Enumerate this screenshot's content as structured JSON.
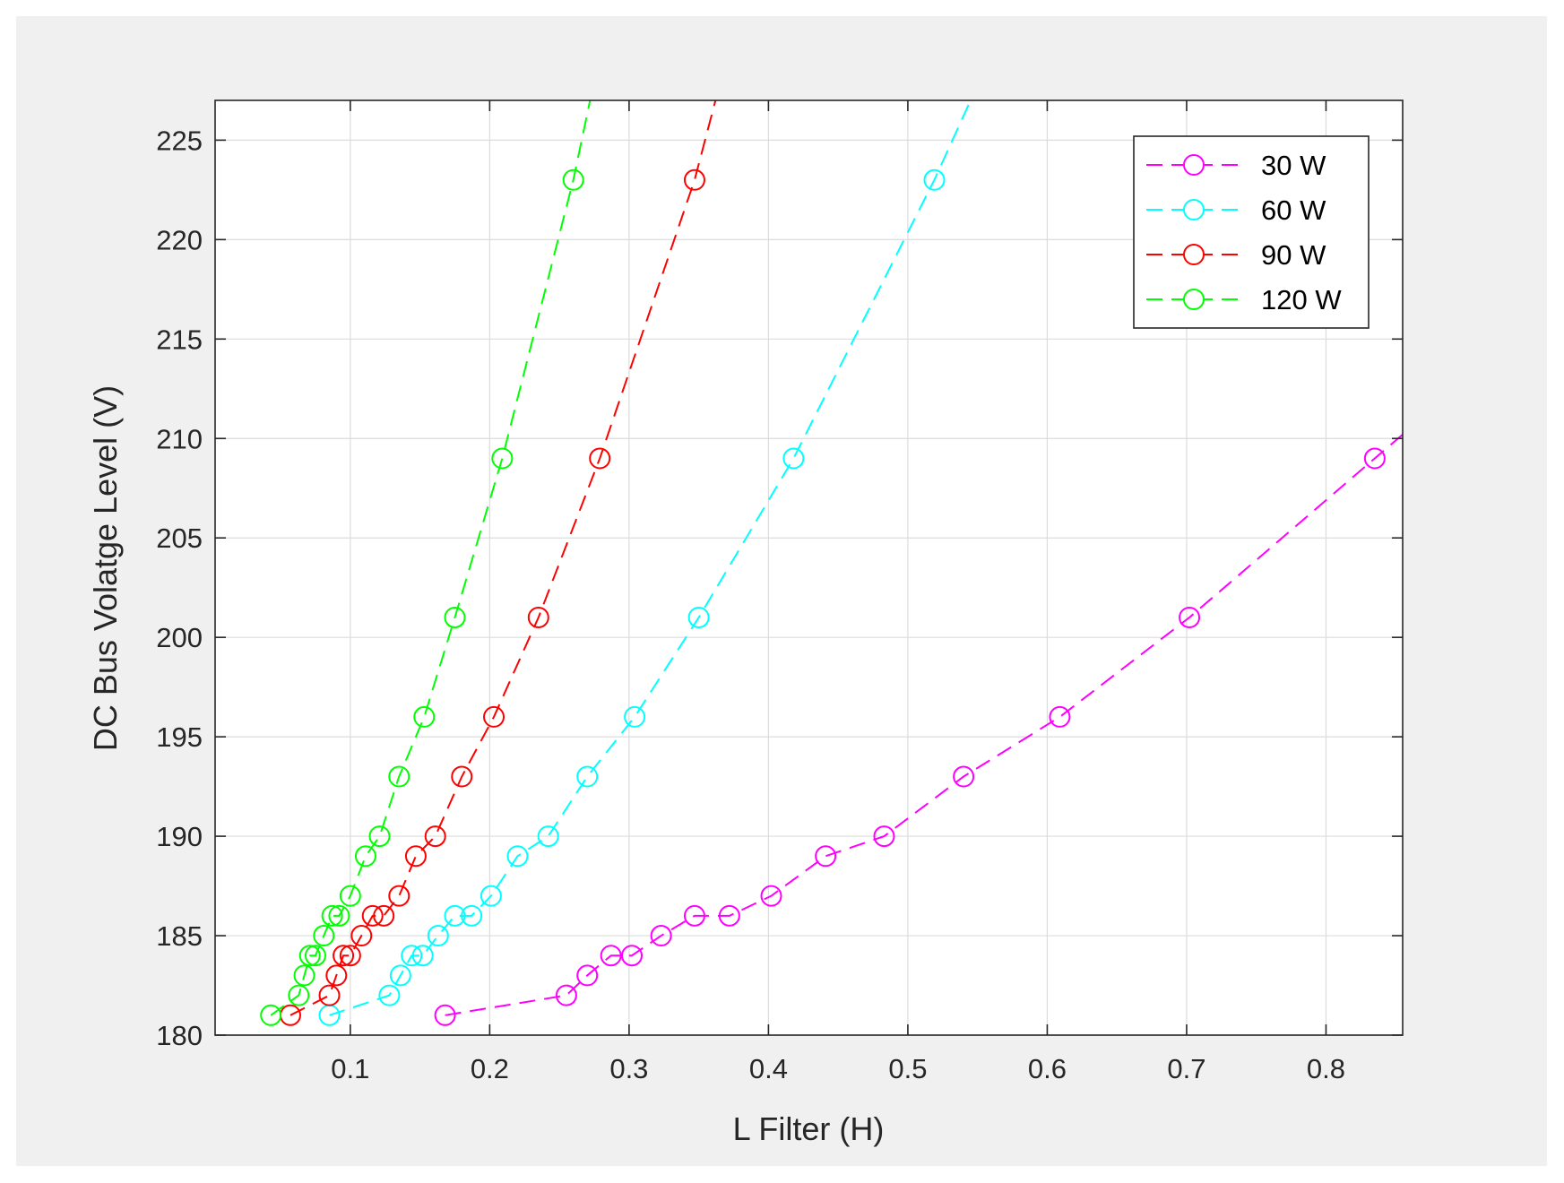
{
  "chart_data": {
    "type": "line",
    "title": "",
    "xlabel": "L Filter (H)",
    "ylabel": "DC Bus Volatge Level (V)",
    "xlim": [
      0.003,
      0.855
    ],
    "ylim": [
      180,
      227
    ],
    "xticks": [
      0.1,
      0.2,
      0.3,
      0.4,
      0.5,
      0.6,
      0.7,
      0.8
    ],
    "yticks": [
      180,
      185,
      190,
      195,
      200,
      205,
      210,
      215,
      220,
      225
    ],
    "grid": true,
    "legend_position": "top-right",
    "marker": "circle",
    "line_style": "dashed",
    "series": [
      {
        "name": "30 W",
        "color": "#ff00ff",
        "x": [
          0.168,
          0.255,
          0.27,
          0.287,
          0.302,
          0.323,
          0.347,
          0.372,
          0.402,
          0.441,
          0.483,
          0.54,
          0.609,
          0.702,
          0.835
        ],
        "y": [
          181,
          182,
          183,
          184,
          184,
          185,
          186,
          186,
          187,
          189,
          190,
          193,
          196,
          201,
          209
        ],
        "extend_to": [
          0.86,
          210.5
        ]
      },
      {
        "name": "60 W",
        "color": "#00ffff",
        "x": [
          0.085,
          0.128,
          0.136,
          0.144,
          0.152,
          0.163,
          0.175,
          0.187,
          0.201,
          0.22,
          0.242,
          0.27,
          0.304,
          0.35,
          0.418,
          0.519
        ],
        "y": [
          181,
          182,
          183,
          184,
          184,
          185,
          186,
          186,
          187,
          189,
          190,
          193,
          196,
          201,
          209,
          223
        ],
        "extend_to": [
          0.545,
          227
        ]
      },
      {
        "name": "90 W",
        "color": "#ff0000",
        "x": [
          0.057,
          0.085,
          0.09,
          0.095,
          0.1,
          0.108,
          0.116,
          0.124,
          0.135,
          0.147,
          0.161,
          0.18,
          0.203,
          0.235,
          0.279,
          0.347
        ],
        "y": [
          181,
          182,
          183,
          184,
          184,
          185,
          186,
          186,
          187,
          189,
          190,
          193,
          196,
          201,
          209,
          223
        ],
        "extend_to": [
          0.362,
          227
        ]
      },
      {
        "name": "120 W",
        "color": "#00ff00",
        "x": [
          0.043,
          0.063,
          0.067,
          0.071,
          0.075,
          0.081,
          0.087,
          0.092,
          0.1,
          0.111,
          0.121,
          0.135,
          0.153,
          0.175,
          0.209,
          0.26
        ],
        "y": [
          181,
          182,
          183,
          184,
          184,
          185,
          186,
          186,
          187,
          189,
          190,
          193,
          196,
          201,
          209,
          223
        ],
        "extend_to": [
          0.272,
          227
        ]
      }
    ]
  }
}
